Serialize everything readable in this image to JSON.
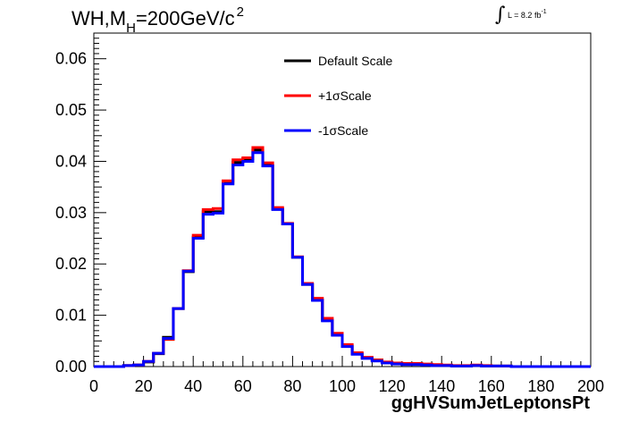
{
  "title": {
    "prefix": "WH,M",
    "subscript": "H",
    "suffix": "=200GeV/c",
    "superscript": "2"
  },
  "luminosity": {
    "symbol": "∫",
    "text": "L = 8.2 fb",
    "superscript": "-1"
  },
  "chart_data": {
    "type": "line",
    "style": "histogram-step",
    "xlabel": "ggHVSumJetLeptonsPt",
    "ylabel": "",
    "xlim": [
      0,
      200
    ],
    "ylim": [
      0,
      0.065
    ],
    "x_ticks": [
      0,
      20,
      40,
      60,
      80,
      100,
      120,
      140,
      160,
      180,
      200
    ],
    "x_tick_labels": [
      "0",
      "20",
      "40",
      "60",
      "80",
      "100",
      "120",
      "140",
      "160",
      "180",
      "200"
    ],
    "y_ticks": [
      0,
      0.01,
      0.02,
      0.03,
      0.04,
      0.05,
      0.06
    ],
    "y_tick_labels": [
      "0.00",
      "0.01",
      "0.02",
      "0.03",
      "0.04",
      "0.05",
      "0.06"
    ],
    "bin_edges": [
      0,
      4,
      8,
      12,
      16,
      20,
      24,
      28,
      32,
      36,
      40,
      44,
      48,
      52,
      56,
      60,
      64,
      68,
      72,
      76,
      80,
      84,
      88,
      92,
      96,
      100,
      104,
      108,
      112,
      116,
      120,
      124,
      128,
      132,
      136,
      140,
      144,
      148,
      152,
      156,
      160,
      164,
      168,
      172,
      176,
      180,
      184,
      188,
      192,
      196,
      200
    ],
    "legend_position": "top-center",
    "grid": false,
    "series": [
      {
        "name": "Default Scale",
        "color": "#000000",
        "values": [
          0,
          0,
          0,
          0.0002,
          0.0003,
          0.0009,
          0.0025,
          0.0057,
          0.0113,
          0.0185,
          0.0252,
          0.0302,
          0.0302,
          0.0357,
          0.0398,
          0.0405,
          0.0422,
          0.0392,
          0.0307,
          0.0278,
          0.0213,
          0.016,
          0.013,
          0.009,
          0.0062,
          0.004,
          0.0025,
          0.0017,
          0.0012,
          0.0008,
          0.0006,
          0.0005,
          0.0005,
          0.0004,
          0.0003,
          0.0002,
          0.0001,
          0.0001,
          0.0002,
          0.0001,
          0.0001,
          0.0001,
          0,
          0,
          0,
          0,
          0,
          0,
          0,
          0
        ]
      },
      {
        "name": "+1σScale",
        "color": "#ff0000",
        "values": [
          0,
          0,
          0,
          0.0002,
          0.0003,
          0.001,
          0.0026,
          0.0053,
          0.0113,
          0.0187,
          0.0256,
          0.0306,
          0.0308,
          0.0362,
          0.0403,
          0.0407,
          0.0427,
          0.0397,
          0.031,
          0.0279,
          0.0214,
          0.0162,
          0.0133,
          0.0094,
          0.0065,
          0.0043,
          0.0027,
          0.0018,
          0.0013,
          0.0009,
          0.0007,
          0.0006,
          0.0006,
          0.0005,
          0.0004,
          0.0003,
          0.0002,
          0.0002,
          0.0003,
          0.0002,
          0.0001,
          0.0001,
          0,
          0,
          0,
          0,
          0,
          0,
          0,
          0
        ]
      },
      {
        "name": "-1σScale",
        "color": "#0000ff",
        "values": [
          0,
          0,
          0,
          0.0002,
          0.0003,
          0.001,
          0.0026,
          0.0055,
          0.0113,
          0.0186,
          0.025,
          0.0297,
          0.0299,
          0.0356,
          0.0393,
          0.04,
          0.0417,
          0.0391,
          0.0306,
          0.0278,
          0.0213,
          0.016,
          0.0129,
          0.0089,
          0.0061,
          0.0039,
          0.0024,
          0.0016,
          0.0011,
          0.0007,
          0.0005,
          0.0004,
          0.0004,
          0.0003,
          0.0002,
          0.0002,
          0.0001,
          0.0001,
          0.0002,
          0.0001,
          0.0001,
          0.0001,
          0,
          0,
          0,
          0,
          0,
          0,
          0,
          0
        ]
      }
    ]
  }
}
